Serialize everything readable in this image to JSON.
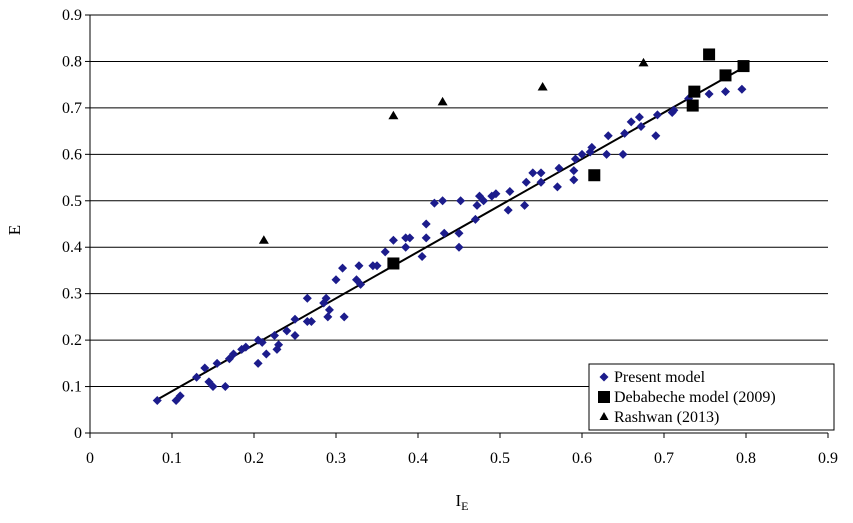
{
  "chart_data": {
    "type": "scatter",
    "title": "",
    "xlabel": "I",
    "xlabel_sub": "E",
    "ylabel": "E",
    "xlim": [
      0,
      0.9
    ],
    "ylim": [
      0,
      0.9
    ],
    "xticks": [
      "0",
      "0.1",
      "0.2",
      "0.3",
      "0.4",
      "0.5",
      "0.6",
      "0.7",
      "0.8",
      "0.9"
    ],
    "yticks": [
      "0",
      "0.1",
      "0.2",
      "0.3",
      "0.4",
      "0.5",
      "0.6",
      "0.7",
      "0.8",
      "0.9"
    ],
    "grid": "horizontal",
    "legend_position": "bottom-right",
    "colors": {
      "present": "#1c1c8c",
      "debabeche": "#000000",
      "rashwan": "#000000",
      "fit": "#000000"
    },
    "fit_line": {
      "x": [
        0.08,
        0.8
      ],
      "y": [
        0.07,
        0.79
      ]
    },
    "series": [
      {
        "name": "Present model",
        "marker": "diamond",
        "points": [
          [
            0.082,
            0.07
          ],
          [
            0.105,
            0.07
          ],
          [
            0.11,
            0.08
          ],
          [
            0.13,
            0.12
          ],
          [
            0.14,
            0.14
          ],
          [
            0.145,
            0.11
          ],
          [
            0.15,
            0.1
          ],
          [
            0.155,
            0.15
          ],
          [
            0.165,
            0.1
          ],
          [
            0.17,
            0.16
          ],
          [
            0.175,
            0.17
          ],
          [
            0.185,
            0.18
          ],
          [
            0.19,
            0.185
          ],
          [
            0.205,
            0.15
          ],
          [
            0.205,
            0.2
          ],
          [
            0.21,
            0.195
          ],
          [
            0.215,
            0.17
          ],
          [
            0.225,
            0.21
          ],
          [
            0.228,
            0.18
          ],
          [
            0.23,
            0.19
          ],
          [
            0.24,
            0.22
          ],
          [
            0.25,
            0.21
          ],
          [
            0.25,
            0.245
          ],
          [
            0.265,
            0.24
          ],
          [
            0.265,
            0.29
          ],
          [
            0.27,
            0.24
          ],
          [
            0.285,
            0.28
          ],
          [
            0.288,
            0.29
          ],
          [
            0.29,
            0.25
          ],
          [
            0.292,
            0.265
          ],
          [
            0.3,
            0.33
          ],
          [
            0.308,
            0.355
          ],
          [
            0.31,
            0.25
          ],
          [
            0.325,
            0.33
          ],
          [
            0.328,
            0.36
          ],
          [
            0.33,
            0.32
          ],
          [
            0.345,
            0.36
          ],
          [
            0.35,
            0.36
          ],
          [
            0.36,
            0.39
          ],
          [
            0.37,
            0.415
          ],
          [
            0.385,
            0.4
          ],
          [
            0.385,
            0.42
          ],
          [
            0.39,
            0.42
          ],
          [
            0.405,
            0.38
          ],
          [
            0.41,
            0.45
          ],
          [
            0.41,
            0.42
          ],
          [
            0.42,
            0.495
          ],
          [
            0.43,
            0.5
          ],
          [
            0.432,
            0.43
          ],
          [
            0.45,
            0.4
          ],
          [
            0.45,
            0.43
          ],
          [
            0.452,
            0.5
          ],
          [
            0.47,
            0.46
          ],
          [
            0.472,
            0.49
          ],
          [
            0.475,
            0.51
          ],
          [
            0.48,
            0.5
          ],
          [
            0.49,
            0.51
          ],
          [
            0.495,
            0.515
          ],
          [
            0.51,
            0.48
          ],
          [
            0.512,
            0.52
          ],
          [
            0.53,
            0.49
          ],
          [
            0.532,
            0.54
          ],
          [
            0.54,
            0.56
          ],
          [
            0.55,
            0.56
          ],
          [
            0.55,
            0.54
          ],
          [
            0.57,
            0.53
          ],
          [
            0.572,
            0.57
          ],
          [
            0.59,
            0.545
          ],
          [
            0.59,
            0.565
          ],
          [
            0.592,
            0.59
          ],
          [
            0.6,
            0.6
          ],
          [
            0.61,
            0.605
          ],
          [
            0.612,
            0.615
          ],
          [
            0.63,
            0.6
          ],
          [
            0.632,
            0.64
          ],
          [
            0.65,
            0.6
          ],
          [
            0.652,
            0.645
          ],
          [
            0.66,
            0.67
          ],
          [
            0.67,
            0.68
          ],
          [
            0.672,
            0.66
          ],
          [
            0.69,
            0.64
          ],
          [
            0.692,
            0.685
          ],
          [
            0.71,
            0.69
          ],
          [
            0.712,
            0.695
          ],
          [
            0.73,
            0.72
          ],
          [
            0.755,
            0.73
          ],
          [
            0.775,
            0.735
          ],
          [
            0.795,
            0.74
          ]
        ]
      },
      {
        "name": "Debabeche model (2009)",
        "marker": "square",
        "points": [
          [
            0.37,
            0.365
          ],
          [
            0.615,
            0.555
          ],
          [
            0.735,
            0.705
          ],
          [
            0.737,
            0.735
          ],
          [
            0.755,
            0.815
          ],
          [
            0.775,
            0.77
          ],
          [
            0.797,
            0.79
          ]
        ]
      },
      {
        "name": "Rashwan (2013)",
        "marker": "triangle",
        "points": [
          [
            0.212,
            0.415
          ],
          [
            0.37,
            0.683
          ],
          [
            0.43,
            0.713
          ],
          [
            0.552,
            0.745
          ],
          [
            0.675,
            0.797
          ]
        ]
      }
    ],
    "legend": [
      "Present model",
      "Debabeche model (2009)",
      "Rashwan (2013)"
    ]
  }
}
